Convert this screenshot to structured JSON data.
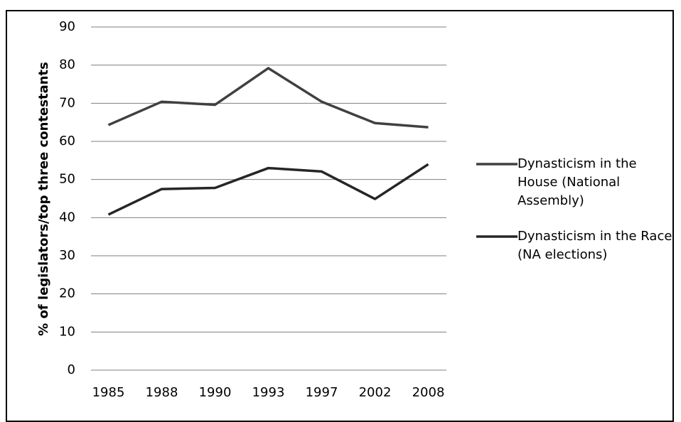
{
  "chart_data": {
    "type": "line",
    "y_label": "% of legislators/top three contestants",
    "categories": [
      "1985",
      "1988",
      "1990",
      "1993",
      "1997",
      "2002",
      "2008"
    ],
    "series": [
      {
        "name": "Dynasticism in the House (National Assembly)",
        "color": "#404040",
        "values": [
          64.3,
          70.4,
          69.6,
          79.2,
          70.4,
          64.8,
          63.7
        ]
      },
      {
        "name": "Dynasticism in the Race (NA elections)",
        "color": "#262626",
        "values": [
          40.8,
          47.5,
          47.8,
          53.0,
          52.1,
          44.9,
          54.0
        ]
      }
    ],
    "ylim": [
      0,
      90
    ],
    "yticks": [
      0,
      10,
      20,
      30,
      40,
      50,
      60,
      70,
      80,
      90
    ],
    "grid": true,
    "legend": "right"
  }
}
